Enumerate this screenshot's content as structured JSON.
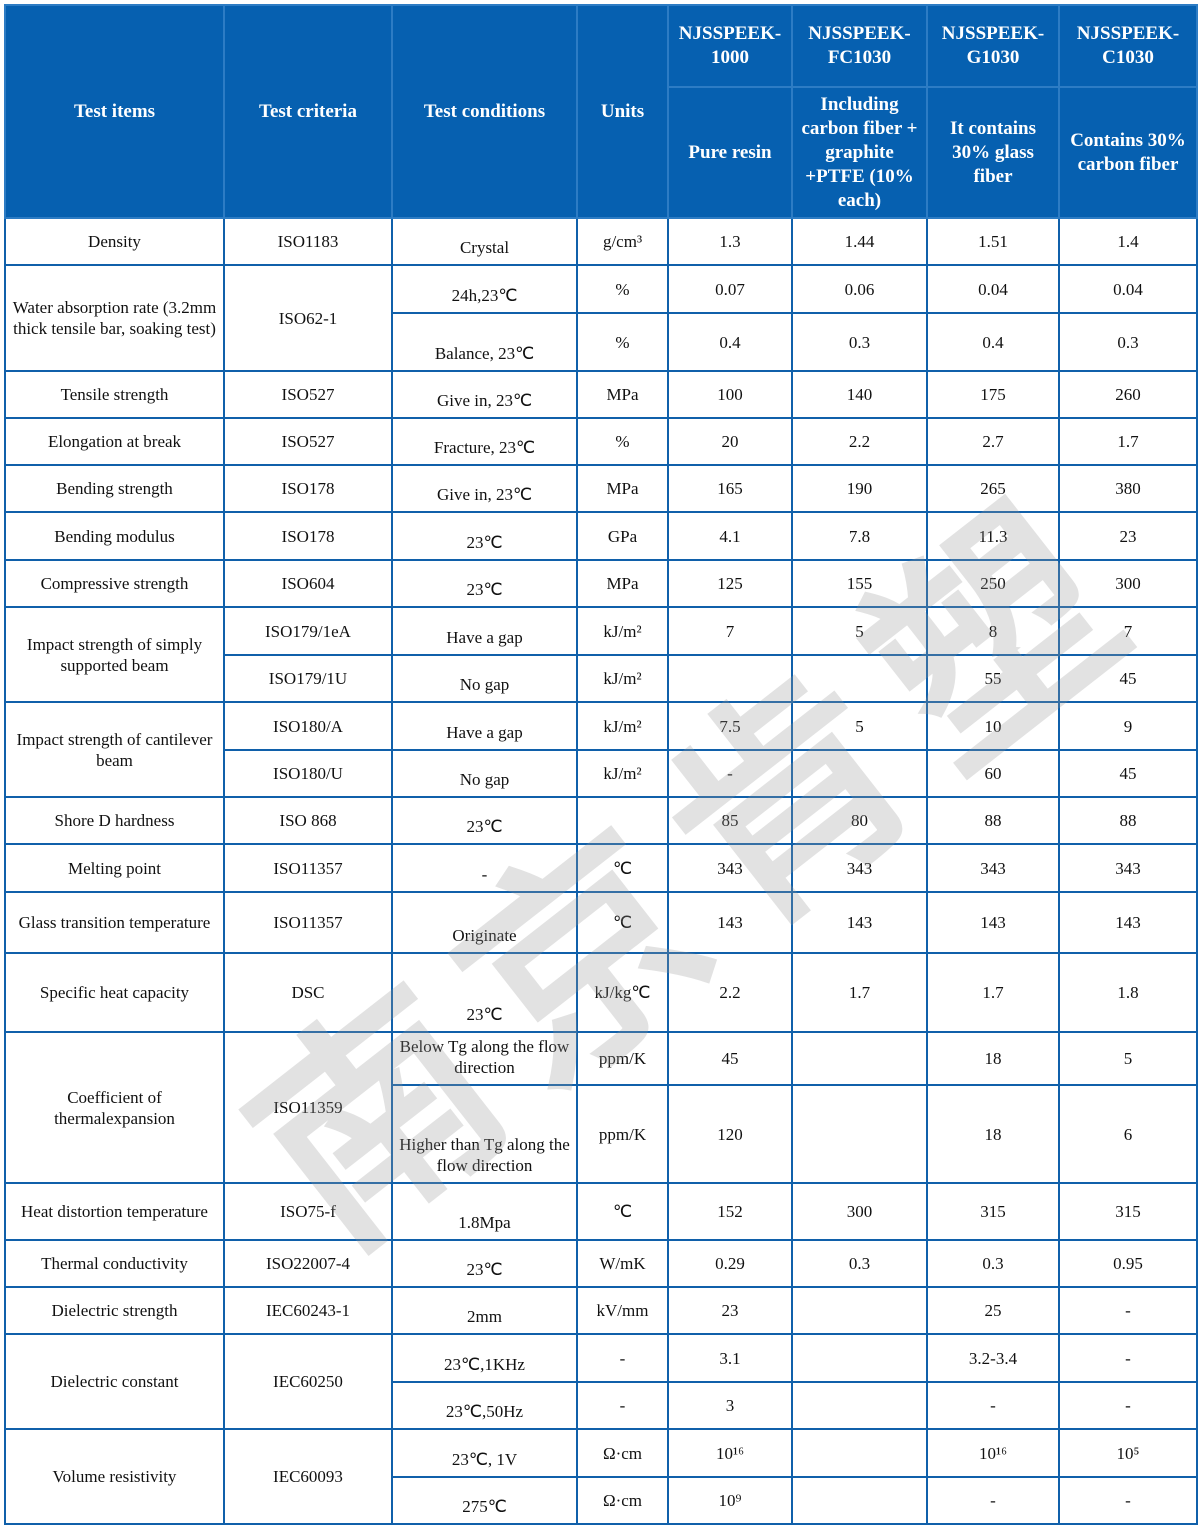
{
  "watermark": "南京肯塑",
  "header": {
    "test_items": "Test items",
    "test_criteria": "Test criteria",
    "test_conditions": "Test conditions",
    "units": "Units",
    "products": [
      {
        "model": "NJSSPEEK-1000",
        "description": "Pure resin"
      },
      {
        "model": "NJSSPEEK-FC1030",
        "description": "Including carbon fiber + graphite +PTFE (10% each)"
      },
      {
        "model": "NJSSPEEK-G1030",
        "description": "It contains 30% glass fiber"
      },
      {
        "model": "NJSSPEEK-C1030",
        "description": "Contains 30% carbon fiber"
      }
    ]
  },
  "groups": [
    {
      "item": "Density",
      "criteria": "ISO1183",
      "rows": [
        {
          "conditions": "Crystal",
          "units": "g/cm³",
          "values": [
            "1.3",
            "1.44",
            "1.51",
            "1.4"
          ]
        }
      ]
    },
    {
      "item": "Water absorption rate (3.2mm thick tensile bar, soaking test)",
      "criteria": "ISO62-1",
      "rows": [
        {
          "conditions": "24h,23℃",
          "units": "%",
          "values": [
            "0.07",
            "0.06",
            "0.04",
            "0.04"
          ]
        },
        {
          "conditions": "Balance, 23℃",
          "units": "%",
          "values": [
            "0.4",
            "0.3",
            "0.4",
            "0.3"
          ]
        }
      ]
    },
    {
      "item": "Tensile strength",
      "criteria": "ISO527",
      "rows": [
        {
          "conditions": "Give in, 23℃",
          "units": "MPa",
          "values": [
            "100",
            "140",
            "175",
            "260"
          ]
        }
      ]
    },
    {
      "item": "Elongation at break",
      "criteria": "ISO527",
      "rows": [
        {
          "conditions": "Fracture, 23℃",
          "units": "%",
          "values": [
            "20",
            "2.2",
            "2.7",
            "1.7"
          ]
        }
      ]
    },
    {
      "item": "Bending strength",
      "criteria": "ISO178",
      "rows": [
        {
          "conditions": "Give in, 23℃",
          "units": "MPa",
          "values": [
            "165",
            "190",
            "265",
            "380"
          ]
        }
      ]
    },
    {
      "item": "Bending modulus",
      "criteria": "ISO178",
      "rows": [
        {
          "conditions": "23℃",
          "units": "GPa",
          "values": [
            "4.1",
            "7.8",
            "11.3",
            "23"
          ]
        }
      ]
    },
    {
      "item": "Compressive strength",
      "criteria": "ISO604",
      "rows": [
        {
          "conditions": "23℃",
          "units": "MPa",
          "values": [
            "125",
            "155",
            "250",
            "300"
          ]
        }
      ]
    },
    {
      "item": "Impact strength of simply supported beam",
      "rows": [
        {
          "criteria": "ISO179/1eA",
          "conditions": "Have a gap",
          "units": "kJ/m²",
          "values": [
            "7",
            "5",
            "8",
            "7"
          ]
        },
        {
          "criteria": "ISO179/1U",
          "conditions": "No gap",
          "units": "kJ/m²",
          "values": [
            "",
            "",
            "55",
            "45"
          ]
        }
      ]
    },
    {
      "item": "Impact strength of cantilever beam",
      "rows": [
        {
          "criteria": "ISO180/A",
          "conditions": "Have a gap",
          "units": "kJ/m²",
          "values": [
            "7.5",
            "5",
            "10",
            "9"
          ]
        },
        {
          "criteria": "ISO180/U",
          "conditions": "No gap",
          "units": "kJ/m²",
          "values": [
            "-",
            "",
            "60",
            "45"
          ]
        }
      ]
    },
    {
      "item": "Shore D hardness",
      "criteria": "ISO 868",
      "rows": [
        {
          "conditions": "23℃",
          "units": "",
          "values": [
            "85",
            "80",
            "88",
            "88"
          ]
        }
      ]
    },
    {
      "item": "Melting point",
      "criteria": "ISO11357",
      "rows": [
        {
          "conditions": "-",
          "units": "℃",
          "values": [
            "343",
            "343",
            "343",
            "343"
          ]
        }
      ]
    },
    {
      "item": "Glass transition temperature",
      "criteria": "ISO11357",
      "rows": [
        {
          "conditions": "Originate",
          "units": "℃",
          "values": [
            "143",
            "143",
            "143",
            "143"
          ]
        }
      ]
    },
    {
      "item": "Specific heat capacity",
      "criteria": "DSC",
      "rows": [
        {
          "conditions": "23℃",
          "units": "kJ/kg℃",
          "values": [
            "2.2",
            "1.7",
            "1.7",
            "1.8"
          ]
        }
      ]
    },
    {
      "item": "Coefficient of thermalexpansion",
      "criteria": "ISO11359",
      "rows": [
        {
          "conditions": "Below Tg along the flow direction",
          "units": "ppm/K",
          "values": [
            "45",
            "",
            "18",
            "5"
          ]
        },
        {
          "conditions": "Higher than Tg along the flow direction",
          "units": "ppm/K",
          "values": [
            "120",
            "",
            "18",
            "6"
          ]
        }
      ]
    },
    {
      "item": "Heat distortion temperature",
      "criteria": "ISO75-f",
      "rows": [
        {
          "conditions": "1.8Mpa",
          "units": "℃",
          "values": [
            "152",
            "300",
            "315",
            "315"
          ]
        }
      ]
    },
    {
      "item": "Thermal conductivity",
      "criteria": "ISO22007-4",
      "rows": [
        {
          "conditions": "23℃",
          "units": "W/mK",
          "values": [
            "0.29",
            "0.3",
            "0.3",
            "0.95"
          ]
        }
      ]
    },
    {
      "item": "Dielectric strength",
      "criteria": "IEC60243-1",
      "rows": [
        {
          "conditions": "2mm",
          "units": "kV/mm",
          "values": [
            "23",
            "",
            "25",
            "-"
          ]
        }
      ]
    },
    {
      "item": "Dielectric constant",
      "criteria": "IEC60250",
      "rows": [
        {
          "conditions": "23℃,1KHz",
          "units": "-",
          "values": [
            "3.1",
            "",
            "3.2-3.4",
            "-"
          ]
        },
        {
          "conditions": "23℃,50Hz",
          "units": "-",
          "values": [
            "3",
            "",
            "-",
            "-"
          ]
        }
      ]
    },
    {
      "item": "Volume resistivity",
      "criteria": "IEC60093",
      "rows": [
        {
          "conditions": "23℃, 1V",
          "units": "Ω·cm",
          "values": [
            "10¹⁶",
            "",
            "10¹⁶",
            "10⁵"
          ]
        },
        {
          "conditions": "275℃",
          "units": "Ω·cm",
          "values": [
            "10⁹",
            "",
            "-",
            "-"
          ]
        }
      ]
    }
  ]
}
